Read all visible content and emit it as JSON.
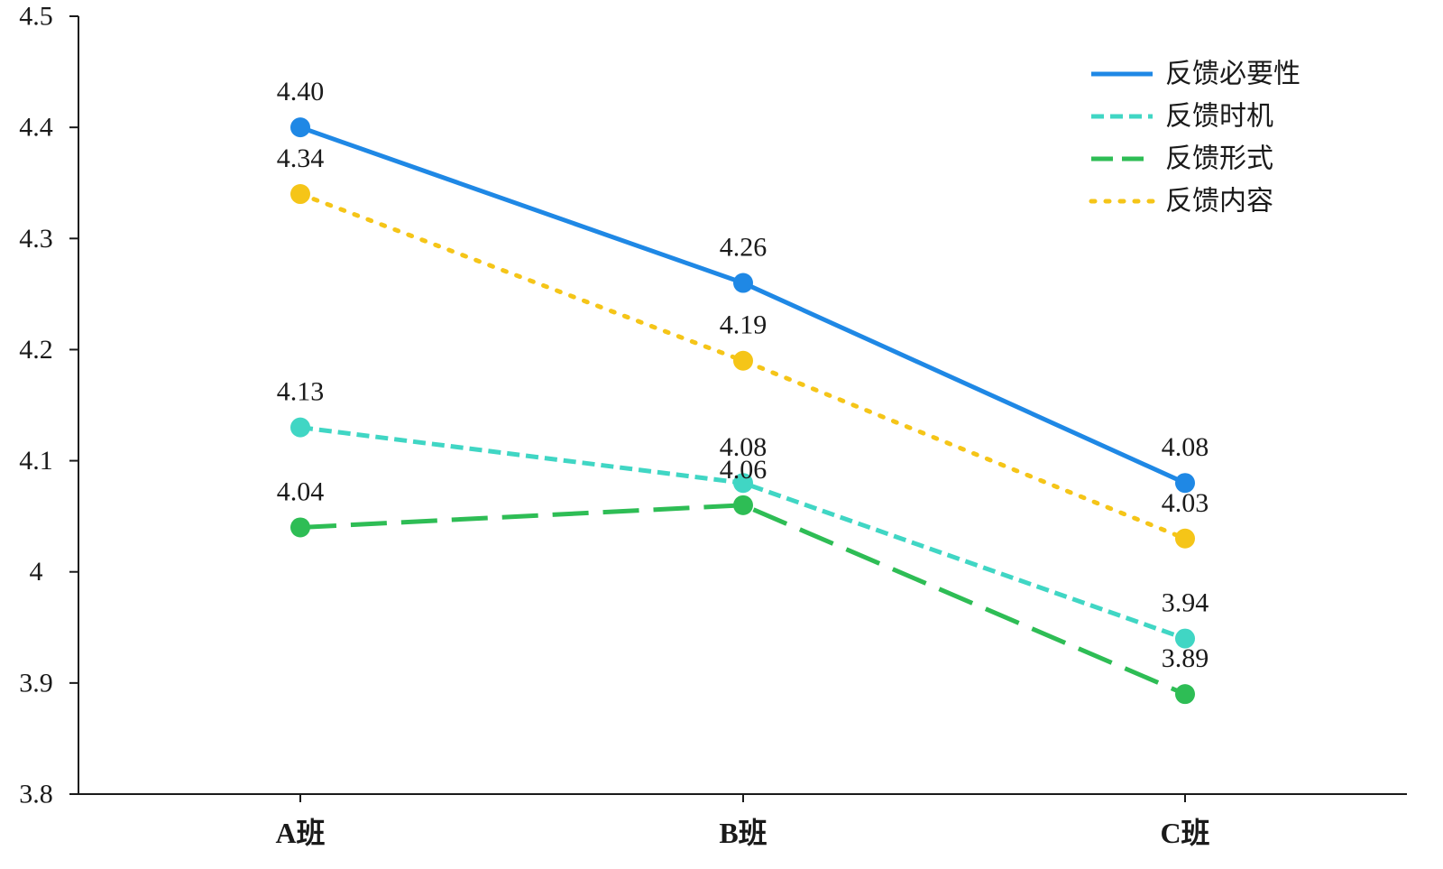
{
  "chart_data": {
    "type": "line",
    "title": "",
    "xlabel": "",
    "ylabel": "",
    "categories": [
      "A班",
      "B班",
      "C班"
    ],
    "ylim": [
      3.8,
      4.5
    ],
    "yticks": [
      "3.8",
      "3.9",
      "4",
      "4.1",
      "4.2",
      "4.3",
      "4.4",
      "4.5"
    ],
    "grid": false,
    "legend_position": "top-right",
    "series": [
      {
        "name": "反馈必要性",
        "values": [
          4.4,
          4.26,
          4.08
        ],
        "labels": [
          "4.40",
          "4.26",
          "4.08"
        ],
        "color": "#1f88e5",
        "style": "solid"
      },
      {
        "name": "反馈时机",
        "values": [
          4.13,
          4.08,
          3.94
        ],
        "labels": [
          "4.13",
          "4.08",
          "3.94"
        ],
        "color": "#40d6c4",
        "style": "dashed"
      },
      {
        "name": "反馈形式",
        "values": [
          4.04,
          4.06,
          3.89
        ],
        "labels": [
          "4.04",
          "4.06",
          "3.89"
        ],
        "color": "#2ebd55",
        "style": "longdash"
      },
      {
        "name": "反馈内容",
        "values": [
          4.34,
          4.19,
          4.03
        ],
        "labels": [
          "4.34",
          "4.19",
          "4.03"
        ],
        "color": "#f5c518",
        "style": "dotted"
      }
    ]
  }
}
